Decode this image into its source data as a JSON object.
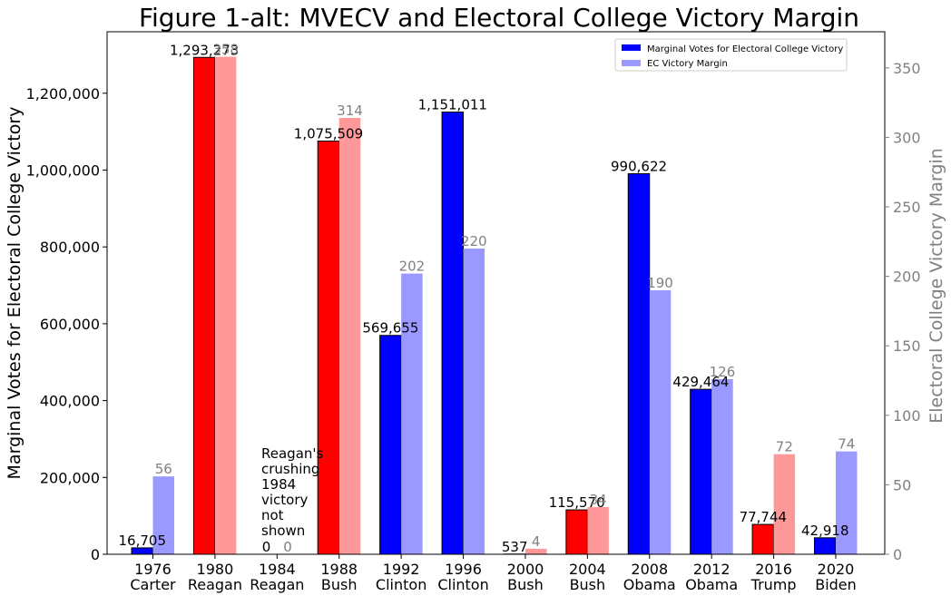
{
  "chart_data": {
    "type": "bar",
    "title": "Figure 1-alt: MVECV and Electoral College Victory Margin",
    "ylabel_left": "Marginal Votes for Electoral College Victory",
    "ylabel_right": "Electoral College Victory Margin",
    "categories": [
      {
        "year": "1976",
        "name": "Carter"
      },
      {
        "year": "1980",
        "name": "Reagan"
      },
      {
        "year": "1984",
        "name": "Reagan"
      },
      {
        "year": "1988",
        "name": "Bush"
      },
      {
        "year": "1992",
        "name": "Clinton"
      },
      {
        "year": "1996",
        "name": "Clinton"
      },
      {
        "year": "2000",
        "name": "Bush"
      },
      {
        "year": "2004",
        "name": "Bush"
      },
      {
        "year": "2008",
        "name": "Obama"
      },
      {
        "year": "2012",
        "name": "Obama"
      },
      {
        "year": "2016",
        "name": "Trump"
      },
      {
        "year": "2020",
        "name": "Biden"
      }
    ],
    "winner_party": [
      "D",
      "R",
      "R",
      "R",
      "D",
      "D",
      "R",
      "R",
      "D",
      "D",
      "R",
      "D"
    ],
    "series": [
      {
        "name": "Marginal Votes for Electoral College Victory",
        "axis": "left",
        "values": [
          16705,
          1293273,
          0,
          1075509,
          569655,
          1151011,
          537,
          115570,
          990622,
          429464,
          77744,
          42918
        ],
        "labels": [
          "16,705",
          "1,293,273",
          "0",
          "1,075,509",
          "569,655",
          "1,151,011",
          "537",
          "115,570",
          "990,622",
          "429,464",
          "77,744",
          "42,918"
        ]
      },
      {
        "name": "EC Victory Margin",
        "axis": "right",
        "values": [
          56,
          358,
          0,
          314,
          202,
          220,
          4,
          34,
          190,
          126,
          72,
          74
        ],
        "labels": [
          "56",
          "358",
          "0",
          "314",
          "202",
          "220",
          "4",
          "34",
          "190",
          "126",
          "72",
          "74"
        ]
      }
    ],
    "left_axis": {
      "ylim": [
        0,
        1360000
      ],
      "ticks": [
        0,
        200000,
        400000,
        600000,
        800000,
        1000000,
        1200000
      ],
      "tick_labels": [
        "0",
        "200,000",
        "400,000",
        "600,000",
        "800,000",
        "1,000,000",
        "1,200,000"
      ]
    },
    "right_axis": {
      "ylim": [
        0,
        376
      ],
      "ticks": [
        0,
        50,
        100,
        150,
        200,
        250,
        300,
        350
      ],
      "tick_labels": [
        "0",
        "50",
        "100",
        "150",
        "200",
        "250",
        "300",
        "350"
      ]
    },
    "annotation": [
      "Reagan's",
      "crushing",
      "1984",
      "victory",
      "not",
      "shown"
    ],
    "legend_position": "top-right",
    "grid": false,
    "colors": {
      "left_D": "#0000ff",
      "left_R": "#ff0000",
      "right_D": "#9999ff",
      "right_R": "#ff9999",
      "legend_left": "#0000ff",
      "legend_right": "#9999ff",
      "right_axis_text": "#808080"
    }
  }
}
